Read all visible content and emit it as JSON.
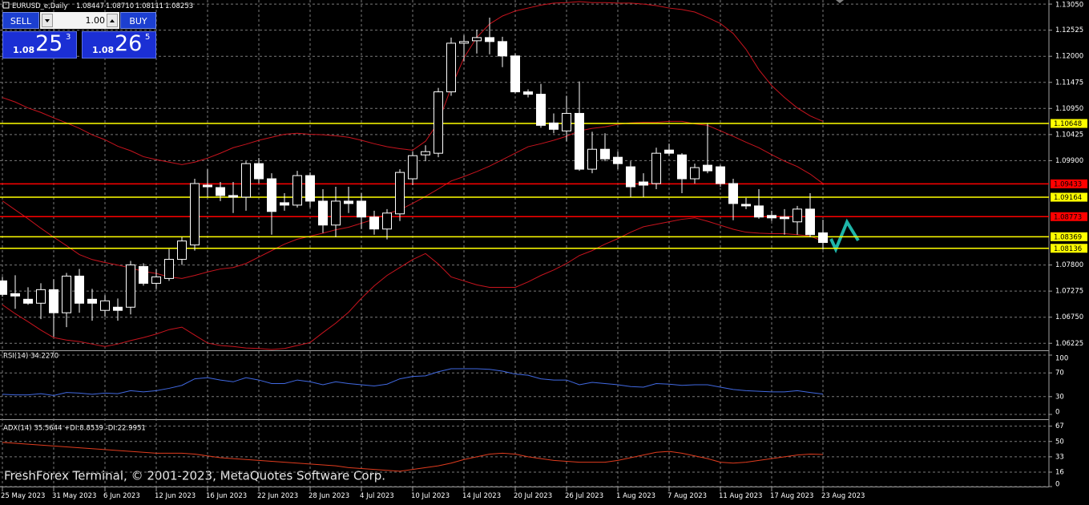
{
  "chart_data": [
    {
      "type": "candlestick",
      "symbol": "EURUSD_e,Daily",
      "last_bar_labels": [
        "1.08447",
        "1.08710",
        "1.08111",
        "1.08253"
      ],
      "categories": [
        "25 May 2023",
        null,
        null,
        null,
        "31 May 2023",
        null,
        null,
        null,
        "6 Jun 2023",
        null,
        null,
        null,
        "12 Jun 2023",
        null,
        null,
        null,
        "16 Jun 2023",
        null,
        null,
        null,
        "22 Jun 2023",
        null,
        null,
        null,
        "28 Jun 2023",
        null,
        null,
        null,
        "4 Jul 2023",
        null,
        null,
        null,
        "10 Jul 2023",
        null,
        null,
        null,
        "14 Jul 2023",
        null,
        null,
        null,
        "20 Jul 2023",
        null,
        null,
        null,
        "26 Jul 2023",
        null,
        null,
        null,
        "1 Aug 2023",
        null,
        null,
        null,
        "7 Aug 2023",
        null,
        null,
        null,
        "11 Aug 2023",
        null,
        null,
        null,
        "17 Aug 2023",
        null,
        null,
        null,
        "23 Aug 2023"
      ],
      "open": [
        1.07481,
        1.07224,
        1.07111,
        1.07031,
        1.07304,
        1.06839,
        1.07577,
        1.07111,
        1.06887,
        1.06951,
        1.06951,
        1.07769,
        1.07432,
        1.07529,
        1.07914,
        1.08203,
        1.09407,
        1.09358,
        1.09198,
        1.09166,
        1.0984,
        1.09535,
        1.09053,
        1.09005,
        1.09599,
        1.09085,
        1.08604,
        1.09085,
        1.09085,
        1.08765,
        1.08524,
        1.08829,
        1.09535,
        1.10016,
        1.10049,
        1.11284,
        1.12263,
        1.12312,
        1.12376,
        1.12296,
        1.12007,
        1.11284,
        1.11236,
        1.10658,
        1.10498,
        1.10851,
        1.09728,
        1.10129,
        1.09968,
        1.09776,
        1.09471,
        1.09439,
        1.10113,
        1.10016,
        1.09535,
        1.09808,
        1.09776,
        1.09439,
        1.09021,
        1.08989,
        1.08797,
        1.08765,
        1.08668,
        1.08925,
        1.08447
      ],
      "high": [
        1.07561,
        1.07593,
        1.07352,
        1.07432,
        1.07513,
        1.07641,
        1.07721,
        1.0732,
        1.07192,
        1.07127,
        1.07882,
        1.07834,
        1.07721,
        1.08123,
        1.08363,
        1.09535,
        1.09728,
        1.09471,
        1.09471,
        1.09888,
        1.09952,
        1.09647,
        1.09246,
        1.09695,
        1.09663,
        1.09326,
        1.09374,
        1.09374,
        1.09246,
        1.08893,
        1.08925,
        1.09728,
        1.10081,
        1.10209,
        1.11365,
        1.12376,
        1.12424,
        1.12536,
        1.12777,
        1.12392,
        1.12055,
        1.11333,
        1.11445,
        1.10851,
        1.11204,
        1.11493,
        1.10482,
        1.1045,
        1.10081,
        1.09888,
        1.09647,
        1.10161,
        1.10241,
        1.10049,
        1.0984,
        1.10642,
        1.09808,
        1.09535,
        1.0915,
        1.09326,
        1.08893,
        1.08925,
        1.08989,
        1.09246,
        1.0871
      ],
      "low": [
        1.0716,
        1.06919,
        1.06999,
        1.0671,
        1.06357,
        1.0655,
        1.06839,
        1.06678,
        1.06758,
        1.06678,
        1.06806,
        1.07384,
        1.0732,
        1.07481,
        1.07802,
        1.0809,
        1.09166,
        1.09085,
        1.08845,
        1.08893,
        1.09439,
        1.08411,
        1.08893,
        1.08957,
        1.08957,
        1.08444,
        1.08363,
        1.08845,
        1.08524,
        1.08411,
        1.08315,
        1.08684,
        1.09407,
        1.09888,
        1.09968,
        1.11204,
        1.11894,
        1.12055,
        1.12039,
        1.11782,
        1.11252,
        1.11172,
        1.10562,
        1.1045,
        1.10289,
        1.09695,
        1.09647,
        1.09888,
        1.09728,
        1.09166,
        1.09166,
        1.09326,
        1.1,
        1.09246,
        1.09439,
        1.09647,
        1.09374,
        1.087,
        1.08925,
        1.08732,
        1.08684,
        1.08411,
        1.08411,
        1.08363,
        1.08111
      ],
      "close": [
        1.07208,
        1.07176,
        1.07031,
        1.07304,
        1.06839,
        1.07577,
        1.07031,
        1.07031,
        1.07079,
        1.06887,
        1.07802,
        1.07432,
        1.07561,
        1.07914,
        1.08283,
        1.09439,
        1.09374,
        1.09198,
        1.09166,
        1.0984,
        1.09535,
        1.08877,
        1.09005,
        1.09599,
        1.09085,
        1.08604,
        1.09085,
        1.09037,
        1.08765,
        1.08524,
        1.08845,
        1.09663,
        1.1,
        1.10081,
        1.11284,
        1.12263,
        1.12296,
        1.12376,
        1.12296,
        1.12007,
        1.11284,
        1.11236,
        1.1061,
        1.1053,
        1.10851,
        1.09728,
        1.10129,
        1.09936,
        1.0984,
        1.09374,
        1.09407,
        1.10049,
        1.10049,
        1.09535,
        1.0976,
        1.09695,
        1.09439,
        1.09037,
        1.08989,
        1.08765,
        1.08748,
        1.08732,
        1.08925,
        1.08411,
        1.08253
      ],
      "up_color": "#000000",
      "down_color": "#ffffff",
      "outline_color": "#ffffff",
      "series": [
        {
          "color": "#c8141e",
          "values": [
            1.1117,
            1.1108,
            1.1096,
            1.1087,
            1.1076,
            1.1066,
            1.1055,
            1.1042,
            1.1032,
            1.1019,
            1.101,
            1.0998,
            1.0992,
            1.0987,
            1.0982,
            1.0987,
            1.0995,
            1.1005,
            1.1016,
            1.1023,
            1.1031,
            1.1037,
            1.1043,
            1.1045,
            1.1043,
            1.1042,
            1.104,
            1.1037,
            1.1031,
            1.1024,
            1.1018,
            1.1014,
            1.1011,
            1.1029,
            1.1067,
            1.1137,
            1.1197,
            1.1238,
            1.1265,
            1.1281,
            1.1291,
            1.1297,
            1.1303,
            1.1307,
            1.1308,
            1.131,
            1.1308,
            1.1308,
            1.1307,
            1.1307,
            1.1305,
            1.1302,
            1.1297,
            1.1294,
            1.1289,
            1.1278,
            1.1266,
            1.1246,
            1.1214,
            1.1173,
            1.1141,
            1.1117,
            1.1096,
            1.108,
            1.1069
          ]
        },
        {
          "color": "#c8141e",
          "values": [
            1.0909,
            1.0891,
            1.0873,
            1.0854,
            1.0836,
            1.0819,
            1.0801,
            1.0791,
            1.0785,
            1.078,
            1.0774,
            1.0767,
            1.0763,
            1.0756,
            1.0753,
            1.0759,
            1.0766,
            1.0772,
            1.0775,
            1.0783,
            1.0796,
            1.0809,
            1.0822,
            1.0832,
            1.0838,
            1.0844,
            1.0851,
            1.0856,
            1.0864,
            1.0872,
            1.0883,
            1.0891,
            1.0904,
            1.0918,
            1.0933,
            1.0949,
            1.0958,
            1.0968,
            1.0979,
            1.0992,
            1.1005,
            1.1018,
            1.1024,
            1.1031,
            1.1039,
            1.105,
            1.1055,
            1.1058,
            1.1063,
            1.1066,
            1.1067,
            1.1067,
            1.1069,
            1.1069,
            1.1064,
            1.1061,
            1.105,
            1.1039,
            1.1027,
            1.1016,
            1.1002,
            1.0989,
            1.0978,
            1.0963,
            1.0944
          ]
        },
        {
          "color": "#c8141e",
          "values": [
            1.07,
            1.0682,
            1.0666,
            1.0649,
            1.0634,
            1.0629,
            1.0626,
            1.0621,
            1.0616,
            1.0621,
            1.0628,
            1.0634,
            1.0641,
            1.065,
            1.0655,
            1.0639,
            1.0623,
            1.0618,
            1.0616,
            1.0613,
            1.0612,
            1.061,
            1.0612,
            1.0618,
            1.0624,
            1.0644,
            1.0663,
            1.0685,
            1.0713,
            1.0738,
            1.0759,
            1.0775,
            1.0791,
            1.0803,
            1.0782,
            1.0756,
            1.0748,
            1.074,
            1.0735,
            1.0735,
            1.0735,
            1.0746,
            1.0759,
            1.077,
            1.0783,
            1.0799,
            1.0809,
            1.0822,
            1.0833,
            1.0846,
            1.0857,
            1.0862,
            1.0867,
            1.0872,
            1.0875,
            1.0868,
            1.086,
            1.0852,
            1.0846,
            1.0844,
            1.0843,
            1.0843,
            1.0841,
            1.0838,
            1.0828
          ]
        }
      ],
      "levels": [
        {
          "value": 1.10648,
          "color": "#ffff00"
        },
        {
          "value": 1.09433,
          "color": "#ff0000"
        },
        {
          "value": 1.09164,
          "color": "#ffff00"
        },
        {
          "value": 1.08773,
          "color": "#ff0000"
        },
        {
          "value": 1.08369,
          "color": "#ffff00"
        },
        {
          "value": 1.08136,
          "color": "#ffff00"
        }
      ],
      "ylim": [
        1.061,
        1.131
      ],
      "yticks": [
        {
          "value": 1.1305,
          "label": "1.13050"
        },
        1.12525,
        {
          "value": 1.12,
          "label": "1.12000"
        },
        1.11475,
        {
          "value": 1.1095,
          "label": "1.10950"
        },
        1.10425,
        {
          "value": 1.099,
          "label": "1.09900"
        },
        {
          "value": 1.078,
          "label": "1.07800"
        },
        1.07275,
        {
          "value": 1.0675,
          "label": "1.06750"
        },
        1.06225
      ],
      "grid": true
    },
    {
      "type": "line",
      "title": "RSI(14) 34.2270",
      "color": "#4169e1",
      "values": [
        34,
        33,
        33,
        35,
        32,
        37,
        36,
        34,
        36,
        35,
        40,
        38,
        40,
        44,
        49,
        60,
        62,
        58,
        55,
        62,
        58,
        52,
        52,
        58,
        55,
        50,
        55,
        52,
        50,
        48,
        51,
        60,
        64,
        65,
        72,
        77,
        77,
        77,
        76,
        73,
        68,
        66,
        60,
        58,
        58,
        50,
        54,
        52,
        50,
        47,
        46,
        52,
        51,
        49,
        50,
        50,
        46,
        42,
        40,
        39,
        38,
        38,
        40,
        37,
        34.227
      ],
      "ylim": [
        0,
        100
      ],
      "yticks": [
        0,
        30,
        70,
        100
      ],
      "grid": true
    },
    {
      "type": "line",
      "title": "ADX(14) 35.5644 +DI:8.8539 -DI:22.9951",
      "color": "#e03c1e",
      "values": [
        49,
        48,
        47,
        46,
        45,
        44,
        43,
        42,
        41,
        40,
        39,
        38,
        37,
        37,
        37,
        36,
        34,
        32,
        31,
        30,
        29,
        28,
        27,
        26,
        25,
        24,
        23,
        21,
        20,
        19,
        18,
        17,
        19,
        21,
        23,
        26,
        30,
        33,
        36,
        37,
        36,
        33,
        31,
        29,
        28,
        27,
        27,
        27,
        29,
        32,
        35,
        38,
        39,
        37,
        34,
        31,
        27,
        26,
        27,
        29,
        31,
        33,
        35,
        36,
        35.5644
      ],
      "ylim": [
        0,
        72
      ],
      "yticks": [
        0,
        16,
        33,
        50,
        67
      ],
      "grid": true
    }
  ],
  "watermark": "FreshForex Terminal, © 2001-2023, MetaQuotes Software Corp.",
  "trade_panel": {
    "sell": "SELL",
    "buy": "BUY",
    "volume": "1.00",
    "bid": {
      "big": "1.08",
      "pips": "25",
      "point": "3"
    },
    "ask": {
      "big": "1.08",
      "pips": "26",
      "point": "5"
    }
  }
}
